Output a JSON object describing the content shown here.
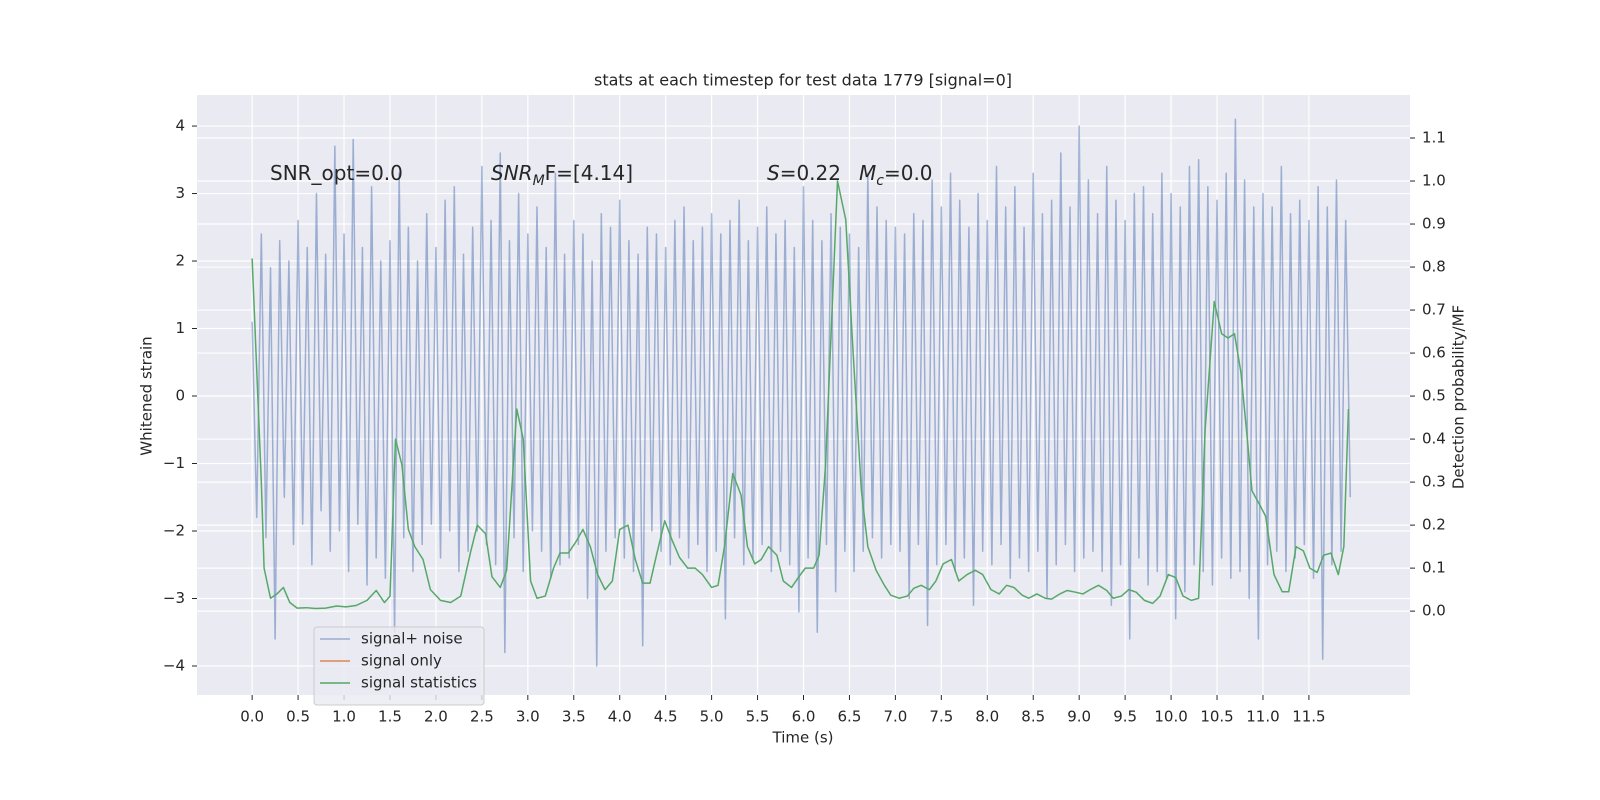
{
  "chart_data": {
    "type": "line",
    "title": "stats at each timestep for test data 1779 [signal=0]",
    "xlabel": "Time (s)",
    "ylabel": "Whitened strain",
    "y2label": "Detection probability/MF",
    "annotations": [
      "SNR_opt=0.0",
      {
        "italic": "SNR",
        "sub": "M",
        "text": "F=[4.14]"
      },
      {
        "italic": "S",
        "text": "=0.22"
      },
      {
        "italic": "M",
        "sub": "c",
        "text": "=0.0"
      }
    ],
    "xlim": [
      -0.6,
      12.6
    ],
    "ylim": [
      -4.43,
      4.46
    ],
    "y2lim": [
      -0.195,
      1.2
    ],
    "xticks": [
      {
        "value": 0,
        "label": "0.0"
      },
      {
        "value": 0.5,
        "label": "0.5"
      },
      {
        "value": 1,
        "label": "1.0"
      },
      {
        "value": 1.5,
        "label": "1.5"
      },
      {
        "value": 2,
        "label": "2.0"
      },
      {
        "value": 2.5,
        "label": "2.5"
      },
      {
        "value": 3,
        "label": "3.0"
      },
      {
        "value": 3.5,
        "label": "3.5"
      },
      {
        "value": 4,
        "label": "4.0"
      },
      {
        "value": 4.5,
        "label": "4.5"
      },
      {
        "value": 5,
        "label": "5.0"
      },
      {
        "value": 5.5,
        "label": "5.5"
      },
      {
        "value": 6,
        "label": "6.0"
      },
      {
        "value": 6.5,
        "label": "6.5"
      },
      {
        "value": 7,
        "label": "7.0"
      },
      {
        "value": 7.5,
        "label": "7.5"
      },
      {
        "value": 8,
        "label": "8.0"
      },
      {
        "value": 8.5,
        "label": "8.5"
      },
      {
        "value": 9,
        "label": "9.0"
      },
      {
        "value": 9.5,
        "label": "9.5"
      },
      {
        "value": 10,
        "label": "10.0"
      },
      {
        "value": 10.5,
        "label": "10.5"
      },
      {
        "value": 11,
        "label": "11.0"
      },
      {
        "value": 11.5,
        "label": "11.5"
      }
    ],
    "yticks": [
      {
        "value": -4,
        "label": "−4"
      },
      {
        "value": -3,
        "label": "−3"
      },
      {
        "value": -2,
        "label": "−2"
      },
      {
        "value": -1,
        "label": "−1"
      },
      0,
      1,
      2,
      3,
      4
    ],
    "y2ticks": [
      {
        "value": 0,
        "label": "0.0"
      },
      {
        "value": 0.1,
        "label": "0.1"
      },
      {
        "value": 0.2,
        "label": "0.2"
      },
      {
        "value": 0.3,
        "label": "0.3"
      },
      {
        "value": 0.4,
        "label": "0.4"
      },
      {
        "value": 0.5,
        "label": "0.5"
      },
      {
        "value": 0.6,
        "label": "0.6"
      },
      {
        "value": 0.7,
        "label": "0.7"
      },
      {
        "value": 0.8,
        "label": "0.8"
      },
      {
        "value": 0.9,
        "label": "0.9"
      },
      {
        "value": 1,
        "label": "1.0"
      },
      {
        "value": 1.1,
        "label": "1.1"
      }
    ],
    "grid": true,
    "legend": "lower left",
    "series": [
      {
        "name": "signal+ noise",
        "color": "#4c72b0",
        "opacity": 0.5,
        "x": [
          0,
          0.05,
          0.1,
          0.15,
          0.2,
          0.25,
          0.3,
          0.35,
          0.4,
          0.45,
          0.5,
          0.55,
          0.6,
          0.65,
          0.7,
          0.75,
          0.8,
          0.85,
          0.9,
          0.95,
          1,
          1.05,
          1.1,
          1.15,
          1.2,
          1.25,
          1.3,
          1.35,
          1.4,
          1.45,
          1.5,
          1.55,
          1.6,
          1.65,
          1.7,
          1.75,
          1.8,
          1.85,
          1.9,
          1.95,
          2,
          2.05,
          2.1,
          2.15,
          2.2,
          2.25,
          2.3,
          2.35,
          2.4,
          2.45,
          2.5,
          2.55,
          2.6,
          2.65,
          2.7,
          2.75,
          2.8,
          2.85,
          2.9,
          2.95,
          3,
          3.05,
          3.1,
          3.15,
          3.2,
          3.25,
          3.3,
          3.35,
          3.4,
          3.45,
          3.5,
          3.55,
          3.6,
          3.65,
          3.7,
          3.75,
          3.8,
          3.85,
          3.9,
          3.95,
          4,
          4.05,
          4.1,
          4.15,
          4.2,
          4.25,
          4.3,
          4.35,
          4.4,
          4.45,
          4.5,
          4.55,
          4.6,
          4.65,
          4.7,
          4.75,
          4.8,
          4.85,
          4.9,
          4.95,
          5,
          5.05,
          5.1,
          5.15,
          5.2,
          5.25,
          5.3,
          5.35,
          5.4,
          5.45,
          5.5,
          5.55,
          5.6,
          5.65,
          5.7,
          5.75,
          5.8,
          5.85,
          5.9,
          5.95,
          6,
          6.05,
          6.1,
          6.15,
          6.2,
          6.25,
          6.3,
          6.35,
          6.4,
          6.45,
          6.5,
          6.55,
          6.6,
          6.65,
          6.7,
          6.75,
          6.8,
          6.85,
          6.9,
          6.95,
          7,
          7.05,
          7.1,
          7.15,
          7.2,
          7.25,
          7.3,
          7.35,
          7.4,
          7.45,
          7.5,
          7.55,
          7.6,
          7.65,
          7.7,
          7.75,
          7.8,
          7.85,
          7.9,
          7.95,
          8,
          8.05,
          8.1,
          8.15,
          8.2,
          8.25,
          8.3,
          8.35,
          8.4,
          8.45,
          8.5,
          8.55,
          8.6,
          8.65,
          8.7,
          8.75,
          8.8,
          8.85,
          8.9,
          8.95,
          9,
          9.05,
          9.1,
          9.15,
          9.2,
          9.25,
          9.3,
          9.35,
          9.4,
          9.45,
          9.5,
          9.55,
          9.6,
          9.65,
          9.7,
          9.75,
          9.8,
          9.85,
          9.9,
          9.95,
          10,
          10.05,
          10.1,
          10.15,
          10.2,
          10.25,
          10.3,
          10.35,
          10.4,
          10.45,
          10.5,
          10.55,
          10.6,
          10.65,
          10.7,
          10.75,
          10.8,
          10.85,
          10.9,
          10.95,
          11,
          11.05,
          11.1,
          11.15,
          11.2,
          11.25,
          11.3,
          11.35,
          11.4,
          11.45,
          11.5,
          11.55,
          11.6,
          11.65,
          11.7,
          11.75,
          11.8,
          11.85,
          11.9,
          11.95
        ],
        "values": [
          1.1,
          -1.8,
          2.4,
          -2.1,
          1.9,
          -3.6,
          2.3,
          -1.5,
          2.0,
          -2.2,
          2.6,
          -1.9,
          2.2,
          -2.5,
          3.0,
          -1.7,
          2.1,
          -2.3,
          3.7,
          -2.0,
          2.4,
          -2.6,
          3.8,
          -1.9,
          2.2,
          -2.8,
          3.1,
          -2.4,
          2.0,
          -2.7,
          2.3,
          -3.5,
          3.3,
          -2.1,
          2.5,
          -2.6,
          2.0,
          -2.2,
          2.7,
          -1.9,
          2.2,
          -2.4,
          2.9,
          -2.0,
          3.1,
          -2.6,
          2.1,
          -2.3,
          2.5,
          -2.0,
          3.4,
          -2.2,
          2.6,
          -2.5,
          3.6,
          -3.8,
          2.3,
          -2.1,
          3.0,
          -2.6,
          2.4,
          -2.0,
          2.8,
          -2.3,
          2.2,
          -2.7,
          3.3,
          -2.5,
          2.1,
          -2.4,
          2.6,
          -2.2,
          2.4,
          -3.0,
          2.0,
          -4.0,
          2.7,
          -2.3,
          2.5,
          -2.1,
          2.9,
          -2.4,
          2.3,
          -2.6,
          2.1,
          -3.7,
          2.5,
          -2.0,
          2.4,
          -2.3,
          2.2,
          -2.5,
          2.6,
          -2.1,
          2.8,
          -2.4,
          2.3,
          -2.2,
          2.5,
          -2.6,
          2.7,
          -2.3,
          2.4,
          -3.3,
          2.6,
          -2.1,
          2.9,
          -2.5,
          2.3,
          -2.4,
          2.5,
          -2.2,
          2.8,
          -2.6,
          2.4,
          -2.3,
          2.6,
          -2.5,
          2.2,
          -3.2,
          3.1,
          -2.4,
          2.6,
          -3.5,
          2.3,
          -2.2,
          2.7,
          -2.9,
          2.5,
          -2.3,
          2.4,
          -2.6,
          2.2,
          -2.3,
          3.3,
          -2.1,
          2.8,
          -2.4,
          2.6,
          -2.2,
          2.5,
          -2.3,
          2.4,
          -3.0,
          2.7,
          -2.2,
          2.6,
          -3.4,
          3.2,
          -2.5,
          2.8,
          -2.2,
          3.3,
          -2.6,
          2.9,
          -2.4,
          2.5,
          -3.1,
          3.0,
          -2.3,
          2.6,
          -2.5,
          3.4,
          -2.2,
          2.8,
          -2.7,
          3.1,
          -2.4,
          2.5,
          -2.6,
          3.3,
          -2.3,
          2.7,
          -3.0,
          2.9,
          -2.5,
          3.6,
          -2.2,
          2.8,
          -2.6,
          4.0,
          -2.4,
          3.2,
          -2.3,
          2.7,
          -2.6,
          3.4,
          -3.1,
          2.9,
          -2.5,
          2.6,
          -3.6,
          3.0,
          -2.4,
          3.1,
          -2.8,
          2.7,
          -2.6,
          3.3,
          -2.7,
          3.0,
          -3.3,
          2.8,
          -2.9,
          3.4,
          -2.5,
          3.5,
          -2.6,
          3.1,
          -2.8,
          2.9,
          -2.4,
          3.3,
          -2.7,
          4.1,
          -2.6,
          3.2,
          -3.0,
          2.8,
          -3.6,
          3.0,
          -2.5,
          2.8,
          -2.3,
          3.4,
          -2.6,
          2.7,
          -2.4,
          2.9,
          -2.2,
          2.6,
          -2.7,
          3.1,
          -3.9,
          2.8,
          -2.5,
          3.2,
          -2.3,
          2.6,
          -1.5
        ]
      },
      {
        "name": "signal only",
        "color": "#dd8452",
        "x": [],
        "values": []
      },
      {
        "name": "signal statistics",
        "color": "#55a868",
        "axis": "y2",
        "x": [
          0,
          0.1,
          0.13,
          0.2,
          0.27,
          0.34,
          0.41,
          0.49,
          0.59,
          0.69,
          0.8,
          0.92,
          1.02,
          1.13,
          1.25,
          1.35,
          1.44,
          1.5,
          1.56,
          1.63,
          1.7,
          1.77,
          1.86,
          1.94,
          2.05,
          2.16,
          2.27,
          2.38,
          2.45,
          2.54,
          2.61,
          2.7,
          2.77,
          2.88,
          2.95,
          3.03,
          3.1,
          3.19,
          3.28,
          3.35,
          3.44,
          3.52,
          3.6,
          3.68,
          3.76,
          3.84,
          3.92,
          4.0,
          4.09,
          4.17,
          4.25,
          4.33,
          4.4,
          4.49,
          4.57,
          4.65,
          4.74,
          4.82,
          4.9,
          5.0,
          5.07,
          5.14,
          5.23,
          5.32,
          5.39,
          5.47,
          5.54,
          5.62,
          5.71,
          5.78,
          5.87,
          5.95,
          6.02,
          6.11,
          6.17,
          6.24,
          6.37,
          6.46,
          6.54,
          6.63,
          6.7,
          6.79,
          6.88,
          6.95,
          7.04,
          7.13,
          7.2,
          7.28,
          7.37,
          7.44,
          7.52,
          7.61,
          7.69,
          7.78,
          7.87,
          7.95,
          8.04,
          8.13,
          8.21,
          8.29,
          8.38,
          8.45,
          8.54,
          8.63,
          8.7,
          8.79,
          8.87,
          8.96,
          9.04,
          9.12,
          9.21,
          9.3,
          9.37,
          9.46,
          9.54,
          9.62,
          9.71,
          9.8,
          9.88,
          9.97,
          10.05,
          10.13,
          10.22,
          10.3,
          10.37,
          10.47,
          10.55,
          10.62,
          10.69,
          10.76,
          10.83,
          10.88,
          10.97,
          11.03,
          11.12,
          11.21,
          11.28,
          11.36,
          11.44,
          11.51,
          11.59,
          11.66,
          11.74,
          11.82,
          11.88,
          11.93
        ],
        "values": [
          0.82,
          0.3,
          0.1,
          0.03,
          0.04,
          0.055,
          0.02,
          0.007,
          0.008,
          0.006,
          0.007,
          0.012,
          0.01,
          0.013,
          0.025,
          0.048,
          0.02,
          0.035,
          0.4,
          0.34,
          0.19,
          0.15,
          0.12,
          0.05,
          0.025,
          0.02,
          0.035,
          0.14,
          0.2,
          0.18,
          0.08,
          0.055,
          0.095,
          0.47,
          0.4,
          0.07,
          0.03,
          0.035,
          0.1,
          0.135,
          0.135,
          0.16,
          0.19,
          0.15,
          0.085,
          0.05,
          0.07,
          0.19,
          0.2,
          0.12,
          0.065,
          0.065,
          0.13,
          0.21,
          0.165,
          0.125,
          0.1,
          0.1,
          0.085,
          0.055,
          0.06,
          0.15,
          0.32,
          0.27,
          0.15,
          0.11,
          0.12,
          0.15,
          0.13,
          0.07,
          0.055,
          0.08,
          0.1,
          0.1,
          0.13,
          0.34,
          1.0,
          0.91,
          0.6,
          0.28,
          0.15,
          0.095,
          0.06,
          0.037,
          0.03,
          0.035,
          0.053,
          0.06,
          0.05,
          0.07,
          0.11,
          0.12,
          0.07,
          0.085,
          0.095,
          0.085,
          0.05,
          0.04,
          0.06,
          0.055,
          0.037,
          0.03,
          0.04,
          0.03,
          0.028,
          0.04,
          0.048,
          0.044,
          0.04,
          0.05,
          0.06,
          0.048,
          0.03,
          0.035,
          0.05,
          0.044,
          0.025,
          0.018,
          0.035,
          0.085,
          0.078,
          0.035,
          0.025,
          0.03,
          0.42,
          0.72,
          0.645,
          0.635,
          0.645,
          0.555,
          0.4,
          0.28,
          0.245,
          0.22,
          0.085,
          0.045,
          0.045,
          0.15,
          0.14,
          0.1,
          0.09,
          0.13,
          0.135,
          0.085,
          0.15,
          0.47
        ]
      }
    ]
  }
}
